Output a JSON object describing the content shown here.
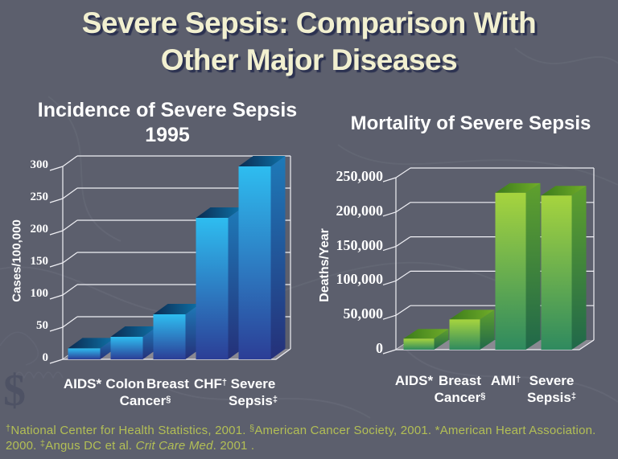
{
  "slide": {
    "title_lines": [
      "Severe Sepsis: Comparison With",
      "Other Major Diseases"
    ]
  },
  "colors": {
    "background": "#5c5f6d",
    "title_text": "#f2f0d0",
    "title_shadow": "#2b3150",
    "chart_text": "#ffffff",
    "footnote_text": "#b3bf55",
    "grid_line": "#f0f0f5",
    "floor": "#8a8992",
    "blue_bar_front_top": "#2ebdf0",
    "blue_bar_front_bottom": "#2c3e96",
    "blue_bar_top_face": "#0b2b50",
    "blue_bar_side": "#1e7ab8",
    "green_bar_front_top": "#a6d43e",
    "green_bar_front_bottom": "#2f8a5f",
    "green_bar_top_face": "#3a7a1b",
    "green_bar_side": "#5fa02d"
  },
  "chart_data": [
    {
      "type": "bar",
      "title_lines": [
        "Incidence of Severe Sepsis",
        "1995"
      ],
      "ylabel": "Cases/100,000",
      "xlabel": "",
      "ylim": [
        0,
        300
      ],
      "grid": true,
      "legend": "none",
      "yticks": [
        {
          "v": 0,
          "label": "0"
        },
        {
          "v": 50,
          "label": "50"
        },
        {
          "v": 100,
          "label": "100"
        },
        {
          "v": 150,
          "label": "150"
        },
        {
          "v": 200,
          "label": "200"
        },
        {
          "v": 250,
          "label": "250"
        },
        {
          "v": 300,
          "label": "300"
        }
      ],
      "categories": [
        {
          "lines": [
            "AIDS*"
          ]
        },
        {
          "lines": [
            "Colon",
            "Cancer§"
          ]
        },
        {
          "lines": [
            "Breast"
          ]
        },
        {
          "lines": [
            "CHF†"
          ]
        },
        {
          "lines": [
            "Severe",
            "Sepsis‡"
          ]
        }
      ],
      "values": [
        17,
        35,
        70,
        220,
        300
      ],
      "bar_theme": "blue"
    },
    {
      "type": "bar",
      "title_lines": [
        "Mortality of Severe Sepsis"
      ],
      "ylabel": "Deaths/Year",
      "xlabel": "",
      "ylim": [
        0,
        250000
      ],
      "grid": true,
      "legend": "none",
      "yticks": [
        {
          "v": 0,
          "label": "0"
        },
        {
          "v": 50000,
          "label": "50,000"
        },
        {
          "v": 100000,
          "label": "100,000"
        },
        {
          "v": 150000,
          "label": "150,000"
        },
        {
          "v": 200000,
          "label": "200,000"
        },
        {
          "v": 250000,
          "label": "250,000"
        }
      ],
      "categories": [
        {
          "lines": [
            "AIDS*"
          ]
        },
        {
          "lines": [
            "Breast",
            "Cancer§"
          ]
        },
        {
          "lines": [
            "AMI†"
          ]
        },
        {
          "lines": [
            "Severe",
            "Sepsis‡"
          ]
        }
      ],
      "values": [
        16000,
        44000,
        228000,
        224000
      ],
      "bar_theme": "green"
    }
  ],
  "footnote": {
    "line1_segments": [
      {
        "sup": "†"
      },
      {
        "text": "National Center for Health Statistics, 2001. "
      },
      {
        "sup": "§"
      },
      {
        "text": "American Cancer Society, 2001. *American Heart Association."
      }
    ],
    "line2_segments": [
      {
        "text": "2000. "
      },
      {
        "sup": "‡"
      },
      {
        "text": "Angus DC et al. "
      },
      {
        "italic": "Crit Care Med"
      },
      {
        "text": ". 2001 ."
      }
    ]
  }
}
